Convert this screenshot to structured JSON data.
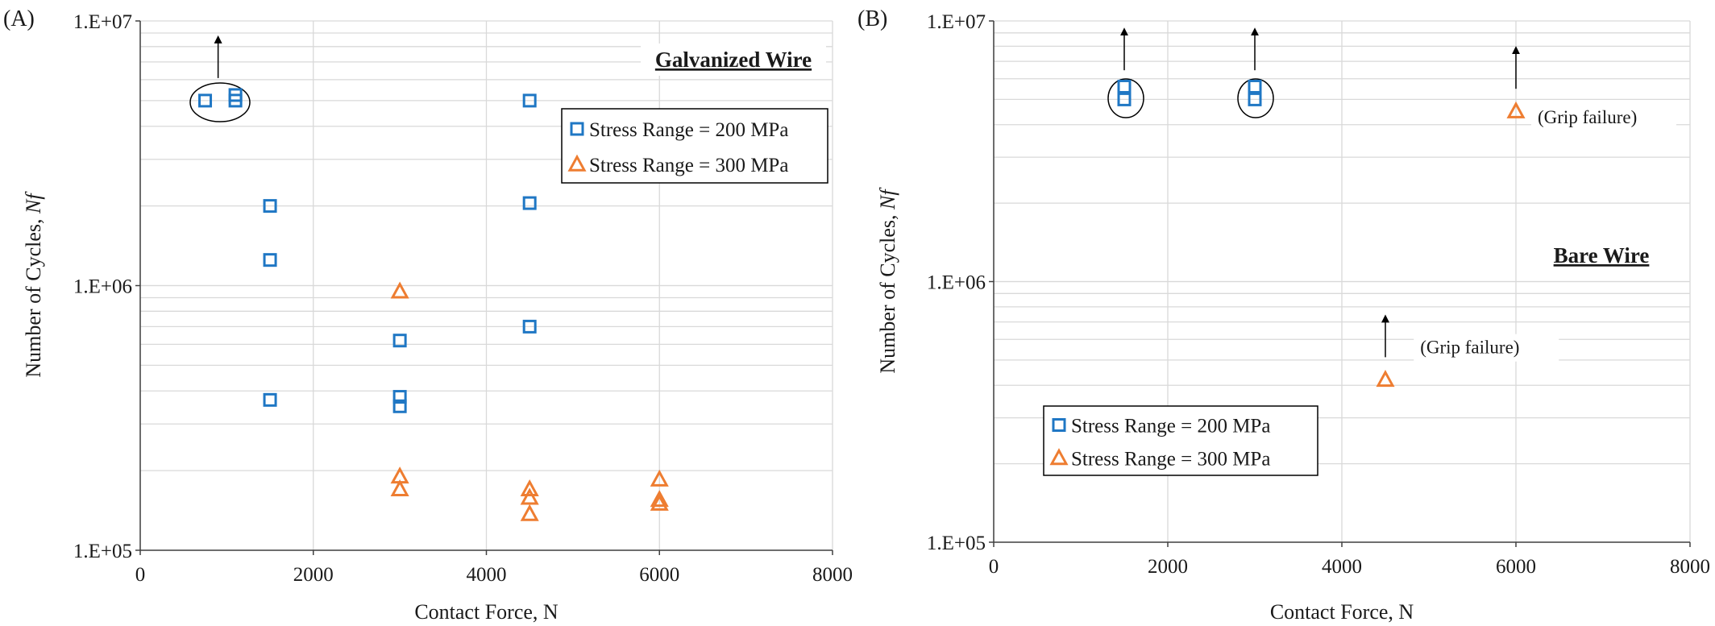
{
  "colors": {
    "series_200": "#1f77c4",
    "series_300": "#ee7d31",
    "grid": "#d9d9d9",
    "axis": "#404040"
  },
  "chart_data": [
    {
      "type": "scatter",
      "panel_label": "(A)",
      "title": "Galvanized Wire",
      "xlabel": "Contact Force, N",
      "ylabel": "Number of Cycles, ",
      "ylabel_italic": "Nf",
      "xlim": [
        0,
        8000
      ],
      "ylim": [
        100000,
        10000000
      ],
      "yscale": "log",
      "x_ticks": [
        "0",
        "2000",
        "4000",
        "6000",
        "8000"
      ],
      "y_ticks": [
        "1.E+05",
        "1.E+06",
        "1.E+07"
      ],
      "grid": true,
      "legend_position": "top-right",
      "series": [
        {
          "name": "Stress Range = 200 MPa",
          "marker": "square",
          "points": [
            [
              750,
              5000000
            ],
            [
              1100,
              5000000
            ],
            [
              1100,
              5250000
            ],
            [
              1500,
              2000000
            ],
            [
              1500,
              1250000
            ],
            [
              1500,
              370000
            ],
            [
              3000,
              620000
            ],
            [
              3000,
              380000
            ],
            [
              3000,
              350000
            ],
            [
              4500,
              5000000
            ],
            [
              4500,
              2050000
            ],
            [
              4500,
              700000
            ]
          ]
        },
        {
          "name": "Stress Range = 300 MPa",
          "marker": "triangle",
          "points": [
            [
              3000,
              950000
            ],
            [
              3000,
              190000
            ],
            [
              3000,
              170000
            ],
            [
              4500,
              170000
            ],
            [
              4500,
              158000
            ],
            [
              4500,
              137000
            ],
            [
              6000,
              185000
            ],
            [
              6000,
              155000
            ],
            [
              6000,
              150000
            ]
          ]
        }
      ],
      "runouts": [
        {
          "x": 900,
          "y": 5000000,
          "circled": true
        }
      ],
      "annotations": []
    },
    {
      "type": "scatter",
      "panel_label": "(B)",
      "title": "Bare Wire",
      "xlabel": "Contact Force, N",
      "ylabel": "Number of Cycles, ",
      "ylabel_italic": "Nf",
      "xlim": [
        0,
        8000
      ],
      "ylim": [
        100000,
        10000000
      ],
      "yscale": "log",
      "x_ticks": [
        "0",
        "2000",
        "4000",
        "6000",
        "8000"
      ],
      "y_ticks": [
        "1.E+05",
        "1.E+06",
        "1.E+07"
      ],
      "grid": true,
      "legend_position": "bottom-left",
      "series": [
        {
          "name": "Stress Range = 200 MPa",
          "marker": "square",
          "points": [
            [
              1500,
              5600000
            ],
            [
              1500,
              5000000
            ],
            [
              3000,
              5600000
            ],
            [
              3000,
              5000000
            ]
          ]
        },
        {
          "name": "Stress Range = 300 MPa",
          "marker": "triangle",
          "points": [
            [
              4500,
              420000
            ],
            [
              6000,
              4500000
            ]
          ]
        }
      ],
      "runouts": [
        {
          "x": 1500,
          "y": 5300000,
          "circled": true
        },
        {
          "x": 3000,
          "y": 5300000,
          "circled": true
        },
        {
          "x": 6000,
          "y": 4500000,
          "circled": false
        },
        {
          "x": 4500,
          "y": 420000,
          "circled": false
        }
      ],
      "annotations": [
        {
          "text": "(Grip failure)",
          "x": 6250,
          "y": 4050000
        },
        {
          "text": "(Grip failure)",
          "x": 4900,
          "y": 530000
        }
      ]
    }
  ]
}
